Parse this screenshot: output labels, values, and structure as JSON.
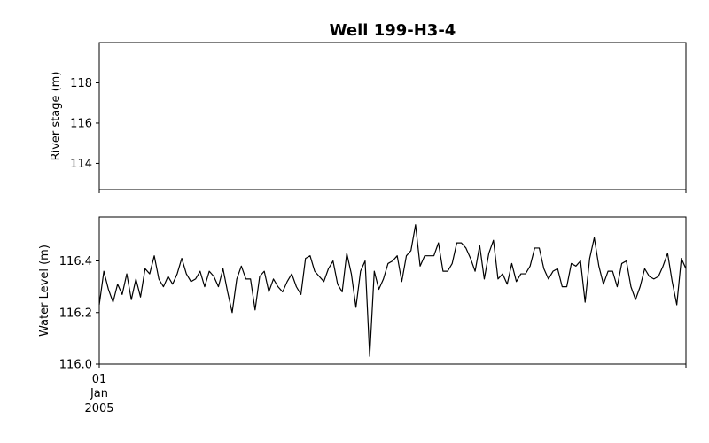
{
  "chart_data": {
    "type": "line",
    "title": "Well 199-H3-4",
    "panels": [
      {
        "id": "river",
        "ylabel": "River stage (m)",
        "ylim": [
          112.7,
          120.0
        ],
        "yticks": [
          114,
          116,
          118
        ],
        "ytick_labels": [
          "114",
          "116",
          "118"
        ],
        "series": []
      },
      {
        "id": "well",
        "ylabel": "Water Level (m)",
        "ylim": [
          116.0,
          116.57
        ],
        "yticks": [
          116.0,
          116.2,
          116.4
        ],
        "ytick_labels": [
          "116.0",
          "116.2",
          "116.4"
        ],
        "series": [
          {
            "values": [
              116.23,
              116.36,
              116.29,
              116.24,
              116.31,
              116.27,
              116.35,
              116.25,
              116.33,
              116.26,
              116.37,
              116.35,
              116.42,
              116.33,
              116.3,
              116.34,
              116.31,
              116.35,
              116.41,
              116.35,
              116.32,
              116.33,
              116.36,
              116.3,
              116.36,
              116.34,
              116.3,
              116.37,
              116.28,
              116.2,
              116.33,
              116.38,
              116.33,
              116.33,
              116.21,
              116.34,
              116.36,
              116.28,
              116.33,
              116.3,
              116.28,
              116.32,
              116.35,
              116.3,
              116.27,
              116.41,
              116.42,
              116.36,
              116.34,
              116.32,
              116.37,
              116.4,
              116.31,
              116.28,
              116.43,
              116.35,
              116.22,
              116.36,
              116.4,
              116.03,
              116.36,
              116.29,
              116.33,
              116.39,
              116.4,
              116.42,
              116.32,
              116.42,
              116.44,
              116.54,
              116.38,
              116.42,
              116.42,
              116.42,
              116.47,
              116.36,
              116.36,
              116.39,
              116.47,
              116.47,
              116.45,
              116.41,
              116.36,
              116.46,
              116.33,
              116.43,
              116.48,
              116.33,
              116.35,
              116.31,
              116.39,
              116.32,
              116.35,
              116.35,
              116.38,
              116.45,
              116.45,
              116.37,
              116.33,
              116.36,
              116.37,
              116.3,
              116.3,
              116.39,
              116.38,
              116.4,
              116.24,
              116.41,
              116.49,
              116.38,
              116.31,
              116.36,
              116.36,
              116.3,
              116.39,
              116.4,
              116.3,
              116.25,
              116.3,
              116.37,
              116.34,
              116.33,
              116.34,
              116.38,
              116.43,
              116.32,
              116.23,
              116.41,
              116.37
            ]
          }
        ]
      }
    ],
    "xtick_labels": [
      "01",
      "Jan",
      "2005"
    ],
    "grid": false
  }
}
